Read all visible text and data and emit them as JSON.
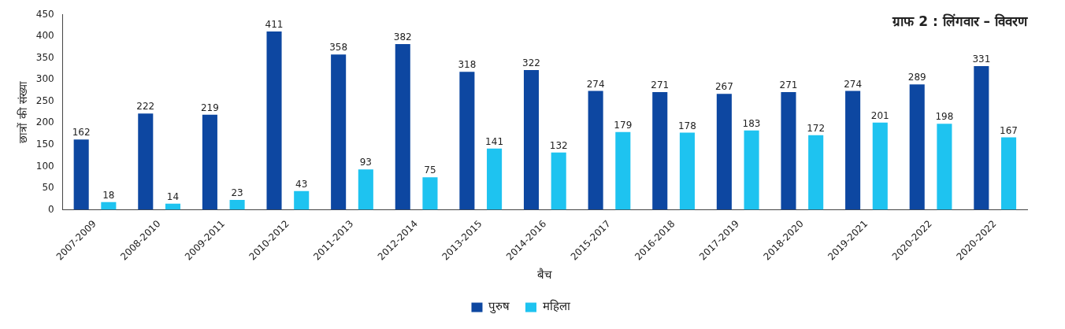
{
  "chart_data": {
    "type": "bar",
    "title": "ग्राफ 2 : लिंगवार – विवरण",
    "xlabel": "बैच",
    "ylabel": "छात्रों की संख्या",
    "categories": [
      "2007-2009",
      "2008-2010",
      "2009-2011",
      "2010-2012",
      "2011-2013",
      "2012-2014",
      "2013-2015",
      "2014-2016",
      "2015-2017",
      "2016-2018",
      "2017-2019",
      "2018-2020",
      "2019-2021",
      "2020-2022",
      "2020-2022"
    ],
    "series": [
      {
        "name": "पुरुष",
        "color": "#0d47a1",
        "values": [
          162,
          222,
          219,
          411,
          358,
          382,
          318,
          322,
          274,
          271,
          267,
          271,
          274,
          289,
          331
        ]
      },
      {
        "name": "महिला",
        "color": "#1ec3f0",
        "values": [
          18,
          14,
          23,
          43,
          93,
          75,
          141,
          132,
          179,
          178,
          183,
          172,
          201,
          198,
          167
        ]
      }
    ],
    "ylim": [
      0,
      450
    ],
    "yticks": [
      0,
      50,
      100,
      150,
      200,
      250,
      300,
      350,
      400,
      450
    ],
    "grid": false,
    "legend": "bottom",
    "data_labels": true
  }
}
